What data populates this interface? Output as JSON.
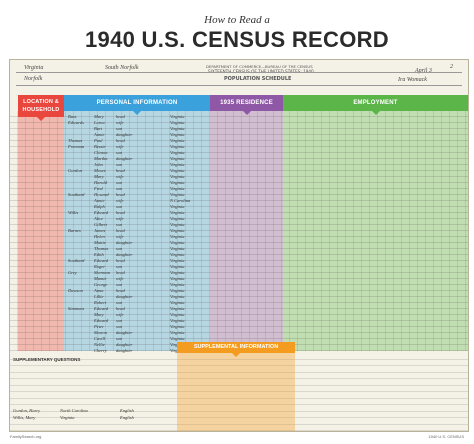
{
  "title_line1": "How to Read a",
  "title_line2": "1940 U.S. CENSUS RECORD",
  "document": {
    "dept": "DEPARTMENT OF COMMERCE—BUREAU OF THE CENSUS",
    "census": "SIXTEENTH CENSUS OF THE UNITED STATES: 1940",
    "schedule": "POPULATION SCHEDULE",
    "state": "Virginia",
    "county": "Norfolk",
    "incorporated_place": "South Norfolk",
    "enumerated_by": "Ira Womack",
    "sheet_no": "2",
    "enumeration_date": "April 3"
  },
  "sections": {
    "location": "LOCATION & HOUSEHOLD",
    "personal": "PERSONAL INFORMATION",
    "residence": "1935 RESIDENCE",
    "employment": "EMPLOYMENT",
    "supplemental": "SUPPLEMENTAL INFORMATION",
    "supp_questions": "SUPPLEMENTARY QUESTIONS"
  },
  "colors": {
    "location": "#e9473d",
    "personal": "#3aa1dc",
    "residence": "#8e58a6",
    "employment": "#5cb549",
    "supplemental": "#f39c1f"
  },
  "rows": [
    {
      "name": "Bass",
      "given": "Mary",
      "rel": "head",
      "place": "Virginia"
    },
    {
      "name": "Edwards",
      "given": "Lorea",
      "rel": "wife",
      "place": "Virginia"
    },
    {
      "name": "",
      "given": "Burt",
      "rel": "son",
      "place": "Virginia"
    },
    {
      "name": "",
      "given": "Annie",
      "rel": "daughter",
      "place": "Virginia"
    },
    {
      "name": "Thomas",
      "given": "Paul",
      "rel": "head",
      "place": "Virginia"
    },
    {
      "name": "Freeman",
      "given": "Bessie",
      "rel": "wife",
      "place": "Virginia"
    },
    {
      "name": "",
      "given": "Clinton",
      "rel": "son",
      "place": "Virginia"
    },
    {
      "name": "",
      "given": "Martha",
      "rel": "daughter",
      "place": "Virginia"
    },
    {
      "name": "",
      "given": "John",
      "rel": "son",
      "place": "Virginia"
    },
    {
      "name": "Gordon",
      "given": "Moses",
      "rel": "head",
      "place": "Virginia"
    },
    {
      "name": "",
      "given": "Mary",
      "rel": "wife",
      "place": "Virginia"
    },
    {
      "name": "",
      "given": "Harold",
      "rel": "son",
      "place": "Virginia"
    },
    {
      "name": "",
      "given": "Fred",
      "rel": "son",
      "place": "Virginia"
    },
    {
      "name": "Southard",
      "given": "Howard",
      "rel": "head",
      "place": "Virginia"
    },
    {
      "name": "",
      "given": "Annie",
      "rel": "wife",
      "place": "N Carolina"
    },
    {
      "name": "",
      "given": "Ralph",
      "rel": "son",
      "place": "Virginia"
    },
    {
      "name": "Willis",
      "given": "Edward",
      "rel": "head",
      "place": "Virginia"
    },
    {
      "name": "",
      "given": "Alice",
      "rel": "wife",
      "place": "Virginia"
    },
    {
      "name": "",
      "given": "Gilbert",
      "rel": "son",
      "place": "Virginia"
    },
    {
      "name": "Barnes",
      "given": "James",
      "rel": "head",
      "place": "Virginia"
    },
    {
      "name": "",
      "given": "Helen",
      "rel": "wife",
      "place": "Virginia"
    },
    {
      "name": "",
      "given": "Mattie",
      "rel": "daughter",
      "place": "Virginia"
    },
    {
      "name": "",
      "given": "Thomas",
      "rel": "son",
      "place": "Virginia"
    },
    {
      "name": "",
      "given": "Edith",
      "rel": "daughter",
      "place": "Virginia"
    },
    {
      "name": "Southard",
      "given": "Edward",
      "rel": "head",
      "place": "Virginia"
    },
    {
      "name": "",
      "given": "Roger",
      "rel": "son",
      "place": "Virginia"
    },
    {
      "name": "Grey",
      "given": "Sherman",
      "rel": "head",
      "place": "Virginia"
    },
    {
      "name": "",
      "given": "Mamie",
      "rel": "wife",
      "place": "Virginia"
    },
    {
      "name": "",
      "given": "George",
      "rel": "son",
      "place": "Virginia"
    },
    {
      "name": "Dawson",
      "given": "Anna",
      "rel": "head",
      "place": "Virginia"
    },
    {
      "name": "",
      "given": "Lillie",
      "rel": "daughter",
      "place": "Virginia"
    },
    {
      "name": "",
      "given": "Robert",
      "rel": "son",
      "place": "Virginia"
    },
    {
      "name": "Simmons",
      "given": "Edward",
      "rel": "head",
      "place": "Virginia"
    },
    {
      "name": "",
      "given": "Mary",
      "rel": "wife",
      "place": "Virginia"
    },
    {
      "name": "",
      "given": "Edward",
      "rel": "son",
      "place": "Virginia"
    },
    {
      "name": "",
      "given": "Peter",
      "rel": "son",
      "place": "Virginia"
    },
    {
      "name": "",
      "given": "Sharon",
      "rel": "daughter",
      "place": "Virginia"
    },
    {
      "name": "",
      "given": "Cavill",
      "rel": "son",
      "place": "Virginia"
    },
    {
      "name": "",
      "given": "Nellie",
      "rel": "daughter",
      "place": "Virginia"
    },
    {
      "name": "",
      "given": "Cherry",
      "rel": "daughter",
      "place": "Virginia"
    }
  ],
  "supp_rows": [
    {
      "name": "Gordon, Harry",
      "place": "North Carolina",
      "lang": "English"
    },
    {
      "name": "Willis, Mary",
      "place": "Virginia",
      "lang": "English"
    }
  ],
  "footer_left": "FamilySearch.org",
  "footer_right": "1940 U.S. CENSUS"
}
